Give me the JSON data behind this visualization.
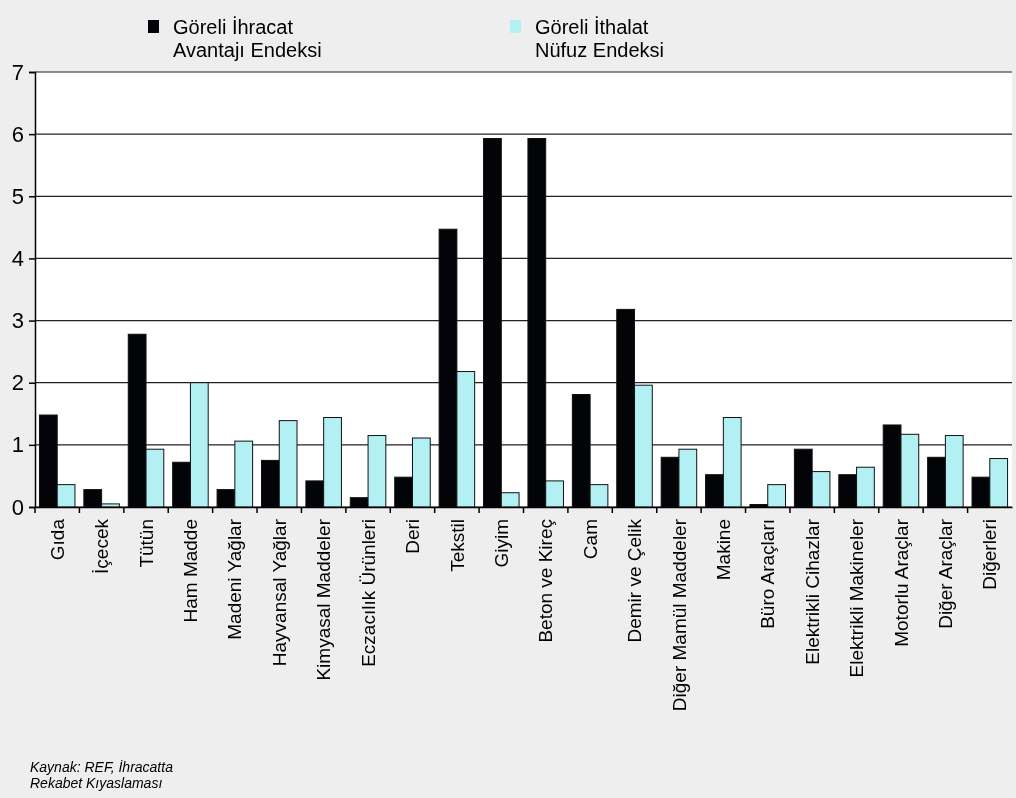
{
  "chart_data": {
    "type": "bar",
    "categories": [
      "Gıda",
      "İçecek",
      "Tütün",
      "Ham Madde",
      "Madeni Yağlar",
      "Hayvansal Yağlar",
      "Kimyasal Maddeler",
      "Eczacılık Ürünleri",
      "Deri",
      "Tekstil",
      "Giyim",
      "Beton ve Kireç",
      "Cam",
      "Demir ve Çelik",
      "Diğer Mamül Maddeler",
      "Makine",
      "Büro Araçları",
      "Elektrikli Cihazlar",
      "Elektrikli Makineler",
      "Motorlu Araçlar",
      "Diğer Araçlar",
      "Diğerleri"
    ],
    "series": [
      {
        "name": "Göreli İhracat Avantajı Endeksi",
        "color": "#030408",
        "values": [
          1.48,
          0.28,
          2.78,
          0.72,
          0.28,
          0.75,
          0.42,
          0.15,
          0.48,
          4.47,
          5.93,
          5.93,
          1.81,
          3.18,
          0.8,
          0.52,
          0.04,
          0.93,
          0.52,
          1.32,
          0.8,
          0.48
        ]
      },
      {
        "name": "Göreli İthalat Nüfuz Endeksi",
        "color": "#b3f0f3",
        "values": [
          0.36,
          0.05,
          0.93,
          2.0,
          1.06,
          1.39,
          1.44,
          1.15,
          1.11,
          2.18,
          0.23,
          0.42,
          0.36,
          1.96,
          0.93,
          1.44,
          0.36,
          0.57,
          0.64,
          1.17,
          1.15,
          0.78
        ]
      }
    ],
    "ylim": [
      0,
      7
    ],
    "yticks": [
      0,
      1,
      2,
      3,
      4,
      5,
      6,
      7
    ],
    "grid": "y",
    "legend": "top",
    "annotations": [
      "Kaynak: REF, İhracatta Rekabet Kıyaslaması"
    ]
  }
}
